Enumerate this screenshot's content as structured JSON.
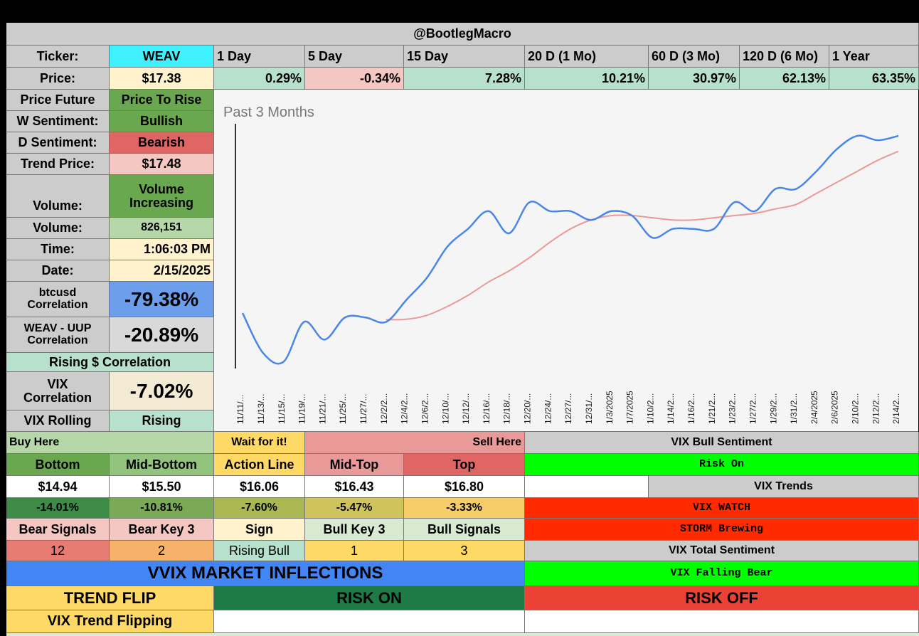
{
  "header": {
    "handle": "@BootlegMacro"
  },
  "ticker_row": {
    "ticker_label": "Ticker:",
    "ticker_value": "WEAV",
    "periods": [
      "1 Day",
      "5 Day",
      "15 Day",
      "20 D (1 Mo)",
      "60 D (3 Mo)",
      "120 D (6 Mo)",
      "1 Year"
    ]
  },
  "price_row": {
    "price_label": "Price:",
    "price_value": "$17.38",
    "changes": [
      "0.29%",
      "-0.34%",
      "7.28%",
      "10.21%",
      "30.97%",
      "62.13%",
      "63.35%"
    ]
  },
  "sidebar": {
    "price_future_label": "Price Future",
    "price_future_value": "Price To Rise",
    "w_sentiment_label": "W Sentiment:",
    "w_sentiment_value": "Bullish",
    "d_sentiment_label": "D Sentiment:",
    "d_sentiment_value": "Bearish",
    "trend_price_label": "Trend Price:",
    "trend_price_value": "$17.48",
    "volume_label": "Volume:",
    "volume_status_line1": "Volume",
    "volume_status_line2": "Increasing",
    "volume_count_label": "Volume:",
    "volume_count_value": "826,151",
    "time_label": "Time:",
    "time_value": "1:06:03 PM",
    "date_label": "Date:",
    "date_value": "2/15/2025",
    "btc_label_line1": "btcusd",
    "btc_label_line2": "Correlation",
    "btc_value": "-79.38%",
    "uup_label_line1": "WEAV - UUP",
    "uup_label_line2": "Correlation",
    "uup_value": "-20.89%",
    "rising_dollar": "Rising $ Correlation",
    "vix_corr_label_line1": "VIX",
    "vix_corr_label_line2": "Correlation",
    "vix_corr_value": "-7.02%",
    "vix_rolling_label": "VIX Rolling",
    "vix_rolling_value": "Rising"
  },
  "chart_data": {
    "type": "line",
    "title": "Past 3 Months",
    "x": [
      "11/11/...",
      "11/13/...",
      "11/15/...",
      "11/19/...",
      "11/21/...",
      "11/25/...",
      "11/27/...",
      "12/2/2...",
      "12/4/2...",
      "12/6/2...",
      "12/10/...",
      "12/12/...",
      "12/16/...",
      "12/18/...",
      "12/20/...",
      "12/24/...",
      "12/27/...",
      "12/31/...",
      "1/3/2025",
      "1/7/2025",
      "1/10/2...",
      "1/14/2...",
      "1/16/2...",
      "1/21/2...",
      "1/23/2...",
      "1/27/2...",
      "1/29/2...",
      "1/31/2...",
      "2/4/2025",
      "2/6/2025",
      "2/10/2...",
      "2/12/2...",
      "2/14/2..."
    ],
    "series": [
      {
        "color": "#4a86e8",
        "values": [
          13.1,
          12.2,
          12.0,
          12.9,
          12.5,
          13.0,
          13.0,
          12.9,
          13.4,
          13.9,
          14.6,
          15.0,
          15.4,
          14.9,
          15.6,
          15.4,
          15.4,
          15.2,
          15.4,
          15.3,
          14.8,
          15.0,
          15.0,
          15.0,
          15.6,
          15.4,
          15.9,
          15.9,
          16.3,
          16.8,
          17.1,
          17.0,
          17.1
        ]
      },
      {
        "color": "#ea9999",
        "values": [
          null,
          null,
          null,
          null,
          null,
          null,
          null,
          12.95,
          12.96,
          13.05,
          13.25,
          13.5,
          13.8,
          14.05,
          14.35,
          14.7,
          15.0,
          15.2,
          15.3,
          15.3,
          15.25,
          15.2,
          15.2,
          15.25,
          15.3,
          15.35,
          15.45,
          15.55,
          15.8,
          16.05,
          16.3,
          16.55,
          16.75
        ]
      }
    ],
    "ylim": [
      11.8,
      17.5
    ],
    "grid": false,
    "legend": "none"
  },
  "levels": {
    "buy_here": "Buy Here",
    "wait": "Wait for it!",
    "sell_here": "Sell Here",
    "headers": [
      "Bottom",
      "Mid-Bottom",
      "Action Line",
      "Mid-Top",
      "Top"
    ],
    "prices": [
      "$14.94",
      "$15.50",
      "$16.06",
      "$16.43",
      "$16.80"
    ],
    "pcts": [
      "-14.01%",
      "-10.81%",
      "-7.60%",
      "-5.47%",
      "-3.33%"
    ],
    "signal_headers": [
      "Bear Signals",
      "Bear Key 3",
      "Sign",
      "Bull Key 3",
      "Bull Signals"
    ],
    "signal_values": [
      "12",
      "2",
      "Rising Bull",
      "1",
      "3"
    ]
  },
  "vix_panel": {
    "bull_sentiment_label": "VIX Bull Sentiment",
    "risk_on": "Risk On",
    "vix_trends_label": "VIX Trends",
    "vix_watch": "VIX WATCH",
    "storm": "STORM Brewing",
    "total_sentiment_label": "VIX Total Sentiment",
    "falling_bear": "VIX Falling Bear"
  },
  "bottom": {
    "vvix": "VVIX MARKET INFLECTIONS",
    "trend_flip": "TREND FLIP",
    "risk_on": "RISK ON",
    "risk_off": "RISK OFF",
    "vix_trend_flipping": "VIX Trend Flipping"
  },
  "colors": {
    "header_gray": "#cccccc",
    "cyan": "#3ff0ff",
    "pale_yellow": "#fff2cc",
    "mint": "#b7e1cd",
    "pink": "#f4c7c3",
    "green": "#6aa84f",
    "red": "#e06666",
    "blue": "#6d9eeb",
    "bright_green": "#00ff00",
    "vix_red": "#ff2a00",
    "vvix_blue": "#4285f4",
    "dark_green": "#1e7b45",
    "risk_red": "#ea4335",
    "gold": "#ffd966"
  }
}
